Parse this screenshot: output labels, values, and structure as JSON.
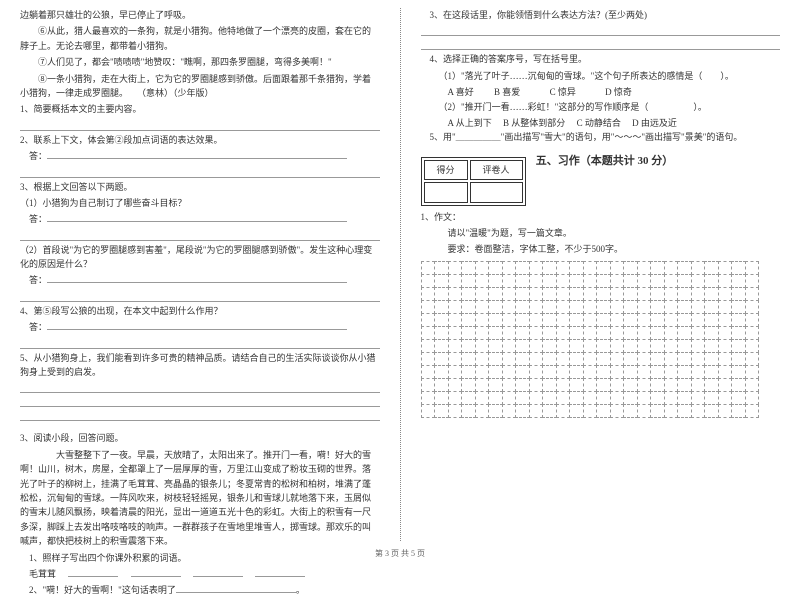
{
  "left": {
    "p1": "边躺着那只雄壮的公狼，早已停止了呼吸。",
    "p2": "⑥从此，猎人最喜欢的一条狗，就是小猎狗。他特地做了一个漂亮的皮圈，套在它的脖子上。无论去哪里，都带着小猎狗。",
    "p3": "⑦人们见了，都会\"啧啧啧\"地赞叹：\"瞧啊，那四条罗圈腿，弯得多美啊！\"",
    "p4": "⑧一条小猎狗，走在大街上，它为它的罗圈腿感到骄傲。后面跟着那千条猎狗，学着小猎狗，一律走成罗圈腿。　　（意林）（少年版）",
    "q1": "1、简要概括本文的主要内容。",
    "q2": "2、联系上下文，体会第②段加点词语的表达效果。",
    "q3": "3、根据上文回答以下两题。",
    "q3a": "（1）小猎狗为自己制订了哪些奋斗目标？",
    "q3b": "（2）首段说\"为它的罗圈腿感到害羞\"，尾段说\"为它的罗圈腿感到骄傲\"。发生这种心理变化的原因是什么？",
    "q4": "4、第⑤段写公狼的出现，在本文中起到什么作用？",
    "q5": "5、从小猎狗身上，我们能看到许多可贵的精神品质。请结合自己的生活实际谈谈你从小猎狗身上受到的启发。",
    "read3": "3、阅读小段，回答问题。",
    "rp1": "　　大雪整整下了一夜。早晨，天放晴了，太阳出来了。推开门一看，嗬！好大的雪啊！山川，树木，房屋，全都罩上了一层厚厚的雪，万里江山变成了粉妆玉砌的世界。落光了叶子的柳树上，挂满了毛茸茸、亮晶晶的银条儿；冬夏常青的松树和柏树，堆满了蓬松松，沉甸甸的雪球。一阵风吹来，树枝轻轻摇晃，银条儿和雪球儿就地落下来，玉屑似的雪末儿随风飘扬，映着清晨的阳光，显出一道道五光十色的彩虹。大街上的积雪有一尺多深，脚踩上去发出咯吱咯吱的响声。一群群孩子在雪地里堆雪人，掷雪球。那欢乐的叫喊声，都快把枝树上的积雪震落下来。",
    "rq1": "1、照样子写出四个你课外积累的词语。",
    "rq1a": "毛茸茸",
    "rq2": "2、\"嗬！好大的雪啊！\"这句话表明了"
  },
  "right": {
    "q3": "3、在这段话里，你能领悟到什么表达方法？(至少两处)",
    "q4": "4、选择正确的答案序号，写在括号里。",
    "q4a": "（1）\"落光了叶子……沉甸甸的雪球。\"这个句子所表达的感情是（　　）。",
    "optA1": "A  喜好",
    "optB1": "B 喜爱",
    "optC1": "C  惊异",
    "optD1": "D 惊奇",
    "q4b": "（2）\"推开门一看……彩虹！\"这部分的写作顺序是（　　　　　）。",
    "optA2": "A 从上到下",
    "optB2": "B  从整体到部分",
    "optC2": "C  动静结合",
    "optD2": "D  由远及近",
    "q5": "5、用\"＿＿＿＿＿\"画出描写\"雪大\"的语句，用\"～～～\"画出描写\"景美\"的语句。",
    "score1": "得分",
    "score2": "评卷人",
    "sec5": "五、习作（本题共计 30 分）",
    "w1": "1、作文：",
    "w2": "请以\"温暖\"为题，写一篇文章。",
    "w3": "要求：卷面整洁，字体工整，不少于500字。",
    "grid": {
      "rows": 12,
      "cols": 25
    }
  },
  "footer": "第 3 页  共 5 页"
}
